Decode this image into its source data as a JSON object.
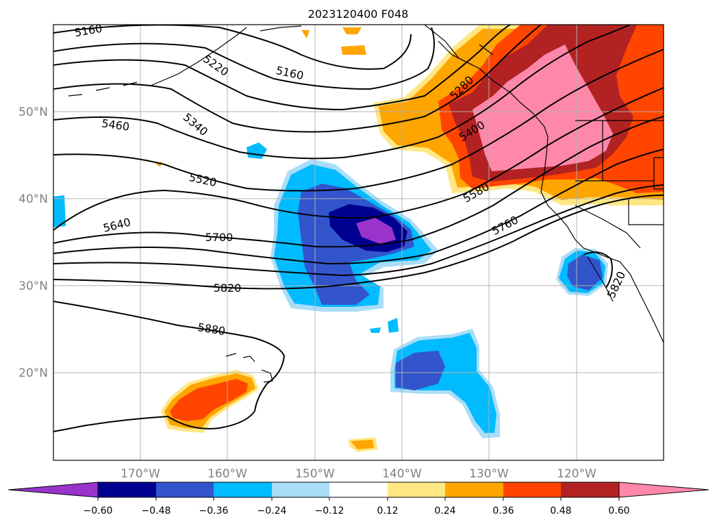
{
  "title": "2023120400 F048",
  "map": {
    "lon_labels": [
      "170°W",
      "160°W",
      "150°W",
      "140°W",
      "130°W",
      "120°W"
    ],
    "lat_labels": [
      "50°N",
      "40°N",
      "30°N",
      "20°N"
    ],
    "lat_label_color": "#808080",
    "grid": true
  },
  "contour_labels": [
    "5160",
    "5220",
    "5160",
    "5340",
    "5460",
    "5280",
    "5400",
    "5520",
    "5580",
    "5640",
    "5700",
    "5760",
    "5820",
    "5820",
    "5880"
  ],
  "colorbar": {
    "ticks": [
      "−0.60",
      "−0.48",
      "−0.36",
      "−0.24",
      "−0.12",
      "0.12",
      "0.24",
      "0.36",
      "0.48",
      "0.60"
    ],
    "colors": [
      "#9933cc",
      "#000090",
      "#3355cc",
      "#00bbff",
      "#aaddf7",
      "#ffffff",
      "#ffe784",
      "#ffa500",
      "#ff4500",
      "#b22222",
      "#ff88aa"
    ]
  }
}
